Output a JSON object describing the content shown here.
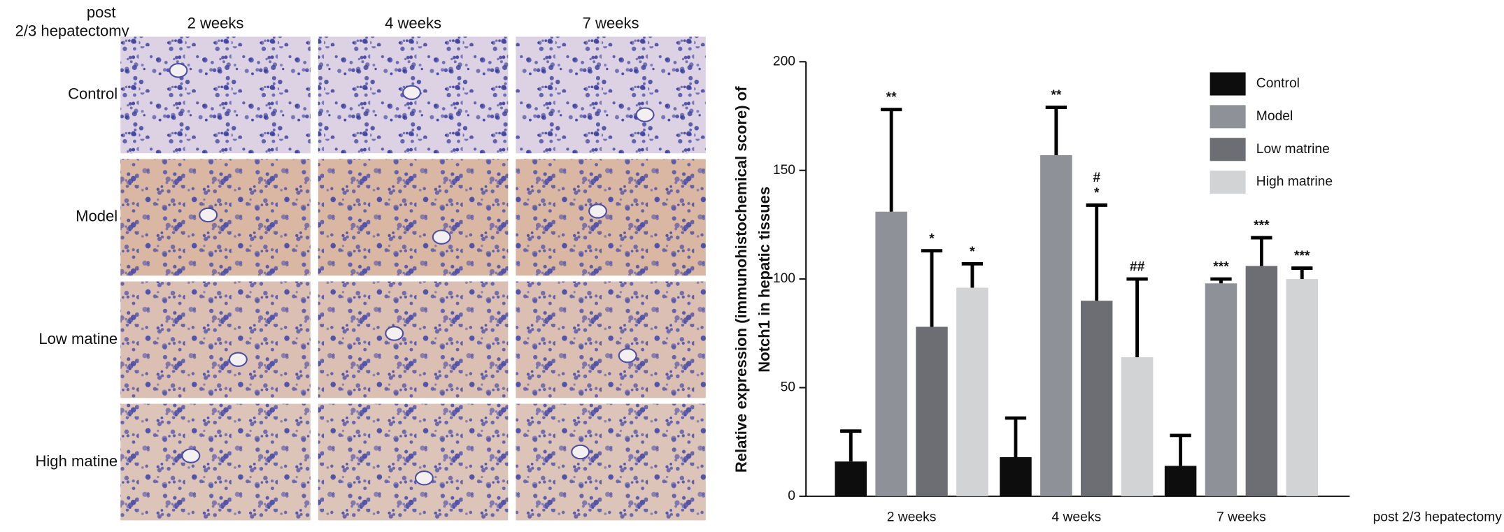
{
  "image_panel": {
    "corner_label": [
      "post",
      "2/3 hepatectomy"
    ],
    "columns": [
      "2 weeks",
      "4 weeks",
      "7 weeks"
    ],
    "rows": [
      "Control",
      "Model",
      "Low matine",
      "High matine"
    ]
  },
  "chart_data": {
    "type": "bar",
    "ylabel": [
      "Relative expression (immunohistochemical score) of",
      "Notch1 in hepatic tissues"
    ],
    "xlabel": "post 2/3 hepatectomy",
    "categories": [
      "2 weeks",
      "4 weeks",
      "7 weeks"
    ],
    "ylim": [
      0,
      200
    ],
    "yticks": [
      0,
      50,
      100,
      150,
      200
    ],
    "legend": "top-right",
    "series": [
      {
        "name": "Control",
        "color": "#0d0d0d",
        "values": [
          16,
          18,
          14
        ],
        "errors": [
          14,
          18,
          14
        ],
        "annotations": [
          null,
          null,
          null
        ]
      },
      {
        "name": "Model",
        "color": "#8e9298",
        "values": [
          131,
          157,
          98
        ],
        "errors": [
          47,
          22,
          2
        ],
        "annotations": [
          [
            "**"
          ],
          [
            "**"
          ],
          [
            "***"
          ]
        ]
      },
      {
        "name": "Low matrine",
        "color": "#6c6e73",
        "values": [
          78,
          90,
          106
        ],
        "errors": [
          35,
          44,
          13
        ],
        "annotations": [
          [
            "*"
          ],
          [
            "#",
            "*"
          ],
          [
            "***"
          ]
        ]
      },
      {
        "name": "High matrine",
        "color": "#d2d3d5",
        "values": [
          96,
          64,
          100
        ],
        "errors": [
          11,
          36,
          5
        ],
        "annotations": [
          [
            "*"
          ],
          [
            "##"
          ],
          [
            "***"
          ]
        ]
      }
    ]
  }
}
